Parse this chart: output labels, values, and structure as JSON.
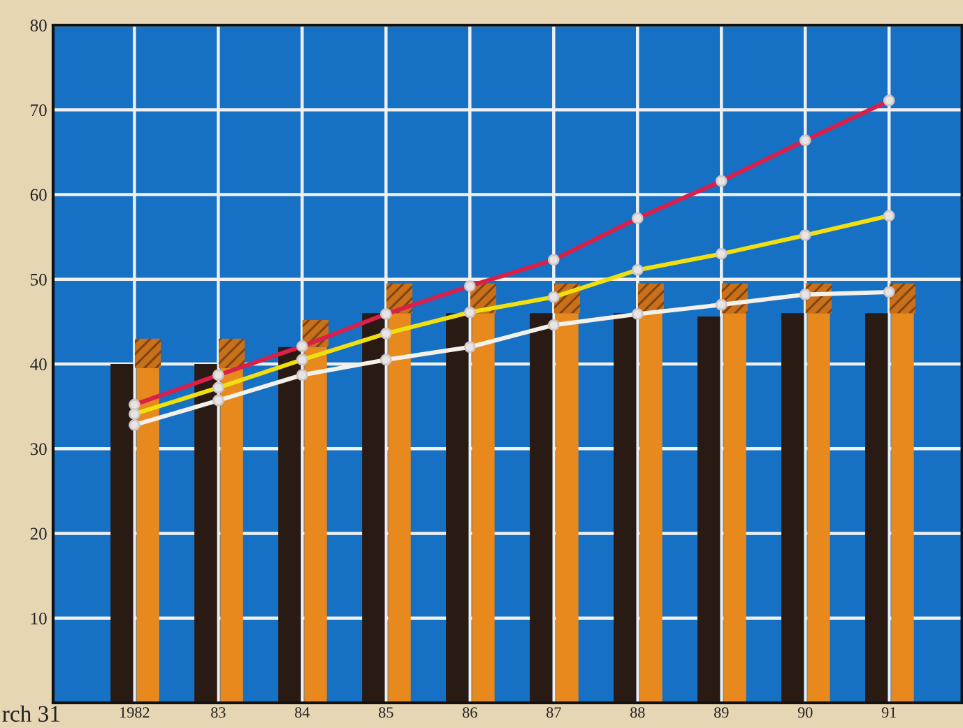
{
  "chart_data": {
    "type": "bar",
    "categories": [
      "1982",
      "83",
      "84",
      "85",
      "86",
      "87",
      "88",
      "89",
      "90",
      "91"
    ],
    "series": [
      {
        "color": "#2a1a14",
        "values": [
          40,
          40,
          42,
          46,
          46,
          46,
          46,
          45.6,
          46,
          46
        ]
      },
      {
        "color": "#e8891e",
        "values": [
          39.5,
          39.5,
          42,
          46,
          46,
          46,
          46,
          46,
          46,
          46
        ]
      },
      {
        "color": "#c8701a",
        "base": [
          39.5,
          39.5,
          42,
          46,
          46,
          46,
          46,
          46,
          46,
          46
        ],
        "values": [
          3.5,
          3.5,
          3.2,
          3.5,
          3.5,
          3.5,
          3.5,
          3.5,
          3.5,
          3.5
        ]
      },
      {
        "type": "line",
        "color": "#d8204a",
        "values": [
          35.2,
          38.7,
          42.1,
          45.9,
          49.2,
          52.3,
          57.2,
          61.6,
          66.4,
          71.1
        ]
      },
      {
        "type": "line",
        "color": "#f0e010",
        "values": [
          34.1,
          37.2,
          40.5,
          43.6,
          46.1,
          47.9,
          51.1,
          53,
          55.2,
          57.5
        ]
      },
      {
        "type": "line",
        "color": "#f4f0ea",
        "values": [
          32.8,
          35.7,
          38.7,
          40.5,
          42,
          44.6,
          45.9,
          47,
          48.2,
          48.5
        ]
      }
    ],
    "marker": "circle",
    "line_style": "solid",
    "ylim": [
      0,
      80
    ],
    "yticks": [
      10,
      20,
      30,
      40,
      50,
      60,
      70,
      80
    ],
    "grid": true,
    "annotations": [
      "rch 31"
    ]
  }
}
